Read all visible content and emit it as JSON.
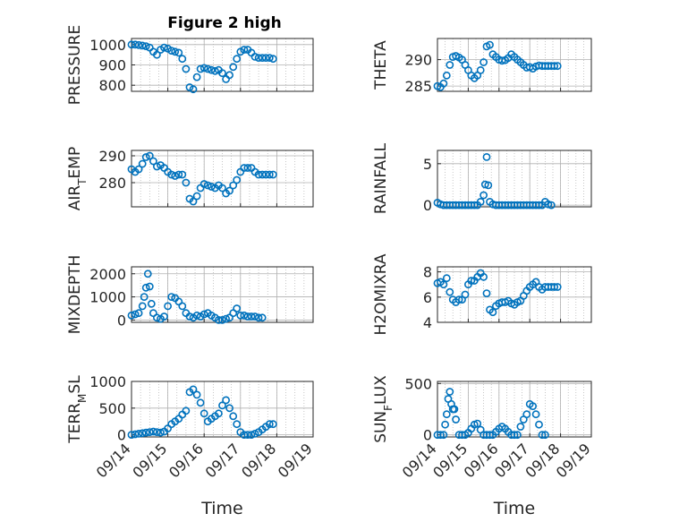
{
  "figure_title": "Figure 2 high",
  "colors": {
    "marker": "#0072BD",
    "axis": "#262626",
    "grid": "#b0b0b0"
  },
  "chart_data": [
    {
      "id": "pressure",
      "type": "scatter",
      "title": "Figure 2 high",
      "ylabel": "PRESSURE",
      "xlabel": "",
      "xlim": [
        0,
        5
      ],
      "ylim": [
        770,
        1030
      ],
      "yticks": [
        800,
        900,
        1000
      ],
      "xticklabels": [],
      "x": [
        0.0,
        0.1,
        0.2,
        0.3,
        0.4,
        0.5,
        0.6,
        0.7,
        0.8,
        0.9,
        1.0,
        1.1,
        1.2,
        1.3,
        1.4,
        1.5,
        1.6,
        1.7,
        1.8,
        1.9,
        2.0,
        2.1,
        2.2,
        2.3,
        2.4,
        2.5,
        2.6,
        2.7,
        2.8,
        2.9,
        3.0,
        3.1,
        3.2,
        3.3,
        3.4,
        3.5,
        3.6,
        3.7,
        3.8,
        3.9
      ],
      "y": [
        1000,
        1000,
        998,
        995,
        992,
        985,
        965,
        950,
        975,
        985,
        980,
        970,
        965,
        960,
        930,
        880,
        790,
        780,
        840,
        880,
        885,
        880,
        875,
        870,
        875,
        860,
        830,
        850,
        890,
        930,
        965,
        975,
        975,
        960,
        940,
        935,
        935,
        935,
        935,
        930
      ]
    },
    {
      "id": "theta",
      "type": "scatter",
      "ylabel": "THETA",
      "xlabel": "",
      "xlim": [
        0,
        5
      ],
      "ylim": [
        284,
        294
      ],
      "yticks": [
        285,
        290
      ],
      "xticklabels": [],
      "x": [
        0.0,
        0.1,
        0.2,
        0.3,
        0.4,
        0.5,
        0.6,
        0.7,
        0.8,
        0.9,
        1.0,
        1.1,
        1.2,
        1.3,
        1.4,
        1.5,
        1.6,
        1.7,
        1.8,
        1.9,
        2.0,
        2.1,
        2.2,
        2.3,
        2.4,
        2.5,
        2.6,
        2.7,
        2.8,
        2.9,
        3.0,
        3.1,
        3.2,
        3.3,
        3.4,
        3.5,
        3.6,
        3.7,
        3.8,
        3.9
      ],
      "y": [
        285,
        284.8,
        285.5,
        287,
        289,
        290.5,
        290.7,
        290.4,
        290,
        289,
        288,
        287,
        286.5,
        287,
        288,
        289.5,
        292.5,
        292.8,
        291,
        290.5,
        290,
        289.8,
        289.9,
        290.3,
        291,
        290.5,
        290,
        289.5,
        289,
        288.5,
        288.6,
        288.3,
        288.7,
        288.9,
        288.8,
        288.8,
        288.8,
        288.8,
        288.8,
        288.8
      ]
    },
    {
      "id": "air_temp",
      "type": "scatter",
      "ylabel": "AIR_TEMP",
      "xlabel": "",
      "xlim": [
        0,
        5
      ],
      "ylim": [
        271,
        292
      ],
      "yticks": [
        280,
        290
      ],
      "xticklabels": [],
      "x": [
        0.0,
        0.1,
        0.2,
        0.3,
        0.4,
        0.5,
        0.6,
        0.7,
        0.8,
        0.9,
        1.0,
        1.1,
        1.2,
        1.3,
        1.4,
        1.5,
        1.6,
        1.7,
        1.8,
        1.9,
        2.0,
        2.1,
        2.2,
        2.3,
        2.4,
        2.5,
        2.6,
        2.7,
        2.8,
        2.9,
        3.0,
        3.1,
        3.2,
        3.3,
        3.4,
        3.5,
        3.6,
        3.7,
        3.8,
        3.9
      ],
      "y": [
        285,
        284,
        285,
        287,
        289.5,
        290,
        288,
        286,
        286.5,
        285.5,
        284,
        283,
        282.5,
        283,
        283,
        280,
        274,
        273,
        275,
        278,
        279.5,
        279,
        278.5,
        278,
        279,
        278,
        276,
        277,
        279,
        281,
        284,
        285.5,
        285.5,
        285.5,
        284,
        283,
        283,
        283,
        283,
        283
      ]
    },
    {
      "id": "rainfall",
      "type": "scatter",
      "ylabel": "RAINFALL",
      "xlabel": "",
      "xlim": [
        0,
        5
      ],
      "ylim": [
        -0.2,
        6.6
      ],
      "yticks": [
        0,
        5
      ],
      "xticklabels": [],
      "x": [
        0.0,
        0.1,
        0.2,
        0.3,
        0.4,
        0.5,
        0.6,
        0.7,
        0.8,
        0.9,
        1.0,
        1.1,
        1.2,
        1.3,
        1.4,
        1.5,
        1.55,
        1.6,
        1.65,
        1.7,
        1.8,
        1.9,
        2.0,
        2.1,
        2.2,
        2.3,
        2.4,
        2.5,
        2.6,
        2.7,
        2.8,
        2.9,
        3.0,
        3.1,
        3.2,
        3.3,
        3.4,
        3.5,
        3.6,
        3.7
      ],
      "y": [
        0.3,
        0.1,
        0,
        0,
        0,
        0,
        0,
        0,
        0,
        0,
        0,
        0,
        0,
        0,
        0.4,
        1.2,
        2.5,
        5.8,
        2.4,
        0.4,
        0.1,
        0,
        0,
        0,
        0,
        0,
        0,
        0,
        0,
        0,
        0,
        0,
        0,
        0,
        0,
        0,
        0,
        0.4,
        0.1,
        0
      ]
    },
    {
      "id": "mixdepth",
      "type": "scatter",
      "ylabel": "MIXDEPTH",
      "xlabel": "",
      "xlim": [
        0,
        5
      ],
      "ylim": [
        -100,
        2300
      ],
      "yticks": [
        0,
        1000,
        2000
      ],
      "xticklabels": [],
      "x": [
        0.0,
        0.1,
        0.2,
        0.3,
        0.35,
        0.4,
        0.45,
        0.5,
        0.55,
        0.6,
        0.7,
        0.8,
        0.9,
        1.0,
        1.1,
        1.2,
        1.3,
        1.4,
        1.5,
        1.6,
        1.7,
        1.8,
        1.9,
        2.0,
        2.1,
        2.2,
        2.3,
        2.4,
        2.5,
        2.6,
        2.7,
        2.8,
        2.9,
        3.0,
        3.1,
        3.2,
        3.3,
        3.4,
        3.5,
        3.6
      ],
      "y": [
        200,
        250,
        300,
        600,
        1000,
        1400,
        2000,
        1450,
        700,
        300,
        100,
        50,
        150,
        600,
        1000,
        950,
        800,
        600,
        300,
        150,
        100,
        200,
        150,
        250,
        300,
        200,
        100,
        0,
        0,
        50,
        100,
        300,
        500,
        200,
        200,
        150,
        150,
        150,
        100,
        100
      ]
    },
    {
      "id": "h2omixra",
      "type": "scatter",
      "ylabel": "H2OMIXRA",
      "xlabel": "",
      "xlim": [
        0,
        5
      ],
      "ylim": [
        4,
        8.4
      ],
      "yticks": [
        4,
        6,
        8
      ],
      "xticklabels": [],
      "x": [
        0.0,
        0.1,
        0.2,
        0.3,
        0.4,
        0.5,
        0.6,
        0.7,
        0.8,
        0.9,
        1.0,
        1.1,
        1.2,
        1.3,
        1.4,
        1.5,
        1.6,
        1.7,
        1.8,
        1.9,
        2.0,
        2.1,
        2.2,
        2.3,
        2.4,
        2.5,
        2.6,
        2.7,
        2.8,
        2.9,
        3.0,
        3.1,
        3.2,
        3.3,
        3.4,
        3.5,
        3.6,
        3.7,
        3.8,
        3.9
      ],
      "y": [
        7.1,
        7.2,
        7.0,
        7.5,
        6.4,
        5.8,
        5.6,
        5.8,
        5.8,
        6.2,
        7.0,
        7.3,
        7.3,
        7.6,
        7.9,
        7.6,
        6.3,
        5.0,
        4.8,
        5.3,
        5.5,
        5.6,
        5.6,
        5.7,
        5.5,
        5.4,
        5.6,
        5.7,
        6.1,
        6.5,
        6.8,
        7.0,
        7.2,
        6.8,
        6.6,
        6.8,
        6.8,
        6.8,
        6.8,
        6.8
      ]
    },
    {
      "id": "terr_msl",
      "type": "scatter",
      "ylabel": "TERR_MSL",
      "xlabel": "Time",
      "xlim": [
        0,
        5
      ],
      "ylim": [
        -40,
        1000
      ],
      "yticks": [
        0,
        500,
        1000
      ],
      "xticklabels": [
        "09/14",
        "09/15",
        "09/16",
        "09/17",
        "09/18",
        "09/19"
      ],
      "x": [
        0.0,
        0.1,
        0.2,
        0.3,
        0.4,
        0.5,
        0.6,
        0.7,
        0.8,
        0.9,
        1.0,
        1.1,
        1.2,
        1.3,
        1.4,
        1.5,
        1.6,
        1.7,
        1.8,
        1.9,
        2.0,
        2.1,
        2.2,
        2.3,
        2.4,
        2.5,
        2.6,
        2.7,
        2.8,
        2.9,
        3.0,
        3.1,
        3.2,
        3.3,
        3.4,
        3.5,
        3.6,
        3.7,
        3.8,
        3.9
      ],
      "y": [
        0,
        10,
        20,
        30,
        40,
        50,
        60,
        50,
        40,
        60,
        120,
        200,
        250,
        300,
        380,
        450,
        800,
        850,
        750,
        600,
        400,
        250,
        300,
        350,
        400,
        550,
        650,
        500,
        350,
        200,
        50,
        0,
        0,
        0,
        20,
        50,
        100,
        150,
        200,
        200
      ]
    },
    {
      "id": "sun_flux",
      "type": "scatter",
      "ylabel": "SUN_FLUX",
      "xlabel": "Time",
      "xlim": [
        0,
        5
      ],
      "ylim": [
        -20,
        520
      ],
      "yticks": [
        0,
        500
      ],
      "xticklabels": [
        "09/14",
        "09/15",
        "09/16",
        "09/17",
        "09/18",
        "09/19"
      ],
      "x": [
        0.0,
        0.1,
        0.2,
        0.25,
        0.3,
        0.35,
        0.4,
        0.45,
        0.5,
        0.55,
        0.6,
        0.7,
        0.8,
        0.9,
        1.0,
        1.1,
        1.2,
        1.3,
        1.4,
        1.5,
        1.6,
        1.7,
        1.8,
        1.9,
        2.0,
        2.1,
        2.2,
        2.3,
        2.4,
        2.5,
        2.6,
        2.7,
        2.8,
        2.9,
        3.0,
        3.1,
        3.2,
        3.3,
        3.4,
        3.5
      ],
      "y": [
        0,
        0,
        0,
        100,
        200,
        350,
        420,
        300,
        250,
        250,
        150,
        0,
        0,
        0,
        20,
        60,
        100,
        110,
        50,
        0,
        0,
        0,
        0,
        30,
        60,
        80,
        60,
        30,
        0,
        0,
        0,
        80,
        150,
        200,
        300,
        280,
        200,
        100,
        0,
        0
      ]
    }
  ]
}
